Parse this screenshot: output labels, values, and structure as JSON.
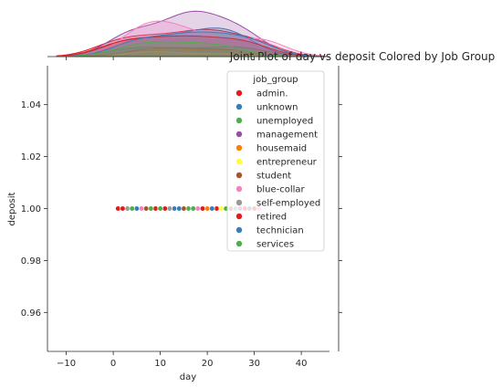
{
  "chart_data": {
    "type": "scatter",
    "kind": "jointplot",
    "title": "Joint Plot of day vs deposit Colored by Job Group",
    "xlabel": "day",
    "ylabel": "deposit",
    "xlim": [
      -14,
      46
    ],
    "ylim": [
      0.945,
      1.055
    ],
    "xticks": [
      -10,
      0,
      10,
      20,
      30,
      40
    ],
    "yticks": [
      0.96,
      0.98,
      1.0,
      1.02,
      1.04
    ],
    "xtick_labels": [
      "−10",
      "0",
      "10",
      "20",
      "30",
      "40"
    ],
    "ytick_labels": [
      "0.96",
      "0.98",
      "1.00",
      "1.02",
      "1.04"
    ],
    "grid": false,
    "legend": {
      "title": "job_group",
      "position": "upper-right"
    },
    "series": [
      {
        "name": "admin.",
        "color": "#e41a1c",
        "points": [
          [
            1,
            1.0
          ],
          [
            9,
            1.0
          ],
          [
            17,
            1.0
          ],
          [
            22,
            1.0
          ],
          [
            30,
            1.0
          ]
        ],
        "kde_peak": 0.55
      },
      {
        "name": "unknown",
        "color": "#377eb8",
        "points": [
          [
            3,
            1.0
          ],
          [
            13,
            1.0
          ],
          [
            21,
            1.0
          ],
          [
            26,
            1.0
          ]
        ],
        "kde_peak": 0.58
      },
      {
        "name": "unemployed",
        "color": "#4daf4a",
        "points": [
          [
            2,
            1.0
          ],
          [
            8,
            1.0
          ],
          [
            16,
            1.0
          ],
          [
            24,
            1.0
          ],
          [
            29,
            1.0
          ]
        ],
        "kde_peak": 0.2
      },
      {
        "name": "management",
        "color": "#984ea3",
        "points": [
          [
            4,
            1.0
          ],
          [
            14,
            1.0
          ],
          [
            19,
            1.0
          ],
          [
            27,
            1.0
          ]
        ],
        "kde_peak": 0.92
      },
      {
        "name": "housemaid",
        "color": "#ff7f00",
        "points": [
          [
            5,
            1.0
          ],
          [
            12,
            1.0
          ],
          [
            20,
            1.0
          ],
          [
            28,
            1.0
          ]
        ],
        "kde_peak": 0.14
      },
      {
        "name": "entrepreneur",
        "color": "#ffff33",
        "points": [
          [
            6,
            1.0
          ],
          [
            11,
            1.0
          ],
          [
            23,
            1.0
          ]
        ],
        "kde_peak": 0.1
      },
      {
        "name": "student",
        "color": "#a65628",
        "points": [
          [
            7,
            1.0
          ],
          [
            15,
            1.0
          ],
          [
            25,
            1.0
          ]
        ],
        "kde_peak": 0.18
      },
      {
        "name": "blue-collar",
        "color": "#f781bf",
        "points": [
          [
            6,
            1.0
          ],
          [
            10,
            1.0
          ],
          [
            18,
            1.0
          ],
          [
            31,
            1.0
          ]
        ],
        "kde_peak": 0.72
      },
      {
        "name": "self-employed",
        "color": "#999999",
        "points": [
          [
            3,
            1.0
          ],
          [
            12,
            1.0
          ],
          [
            26,
            1.0
          ]
        ],
        "kde_peak": 0.16
      },
      {
        "name": "retired",
        "color": "#e41a1c",
        "points": [
          [
            2,
            1.0
          ],
          [
            11,
            1.0
          ],
          [
            19,
            1.0
          ],
          [
            28,
            1.0
          ]
        ],
        "kde_peak": 0.42
      },
      {
        "name": "technician",
        "color": "#377eb8",
        "points": [
          [
            5,
            1.0
          ],
          [
            14,
            1.0
          ],
          [
            21,
            1.0
          ],
          [
            29,
            1.0
          ]
        ],
        "kde_peak": 0.5
      },
      {
        "name": "services",
        "color": "#4daf4a",
        "points": [
          [
            4,
            1.0
          ],
          [
            10,
            1.0
          ],
          [
            17,
            1.0
          ],
          [
            24,
            1.0
          ]
        ],
        "kde_peak": 0.3
      }
    ]
  }
}
